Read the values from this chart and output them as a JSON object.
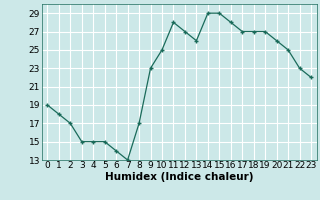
{
  "x": [
    0,
    1,
    2,
    3,
    4,
    5,
    6,
    7,
    8,
    9,
    10,
    11,
    12,
    13,
    14,
    15,
    16,
    17,
    18,
    19,
    20,
    21,
    22,
    23
  ],
  "y": [
    19,
    18,
    17,
    15,
    15,
    15,
    14,
    13,
    17,
    23,
    25,
    28,
    27,
    26,
    29,
    29,
    28,
    27,
    27,
    27,
    26,
    25,
    23,
    22
  ],
  "line_color": "#1a6b5a",
  "marker": "+",
  "bg_color": "#cce8e8",
  "grid_color": "#ffffff",
  "xlabel": "Humidex (Indice chaleur)",
  "ylim": [
    13,
    30
  ],
  "xlim": [
    -0.5,
    23.5
  ],
  "yticks": [
    13,
    15,
    17,
    19,
    21,
    23,
    25,
    27,
    29
  ],
  "xticks": [
    0,
    1,
    2,
    3,
    4,
    5,
    6,
    7,
    8,
    9,
    10,
    11,
    12,
    13,
    14,
    15,
    16,
    17,
    18,
    19,
    20,
    21,
    22,
    23
  ],
  "tick_label_fontsize": 6.5,
  "xlabel_fontsize": 7.5
}
